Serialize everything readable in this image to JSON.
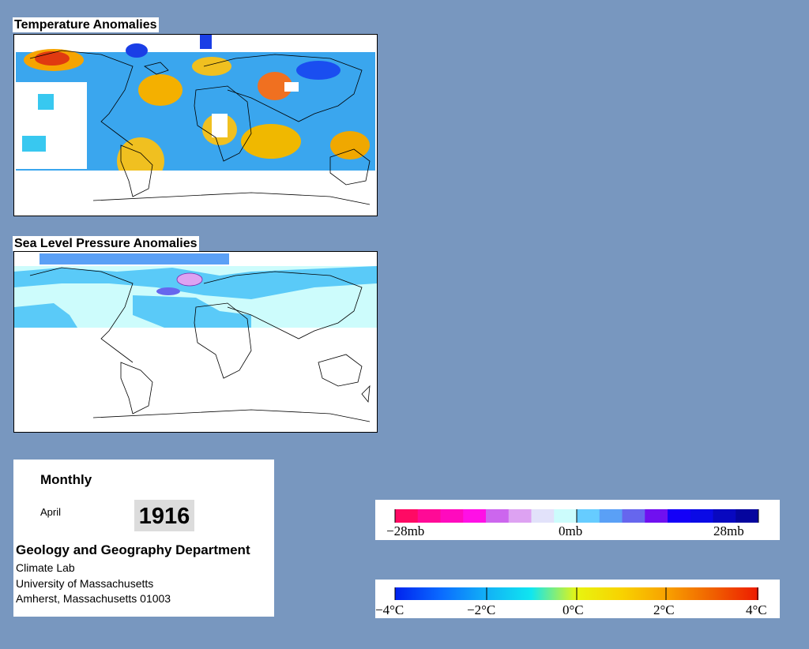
{
  "temperature_panel": {
    "title": "Temperature Anomalies"
  },
  "pressure_panel": {
    "title": "Sea Level Pressure Anomalies"
  },
  "info": {
    "period": "Monthly",
    "month": "April",
    "year": "1916",
    "department": "Geology and Geography Department",
    "lab": "Climate Lab",
    "university": "University of Massachusetts",
    "address": "Amherst, Massachusetts 01003"
  },
  "pressure_legend": {
    "labels": [
      "−28mb",
      "0mb",
      "28mb"
    ],
    "colors": [
      "#ff0a64",
      "#ff0a96",
      "#ff0abe",
      "#ff10e6",
      "#cc66ee",
      "#dda2f2",
      "#e2e2fa",
      "#ccfcfc",
      "#66ccff",
      "#5aa0f6",
      "#6666ee",
      "#7010f0",
      "#1400f8",
      "#0a0ae6",
      "#0808c0",
      "#05059e"
    ]
  },
  "temperature_legend": {
    "labels": [
      "−4°C",
      "−2°C",
      "0°C",
      "2°C",
      "4°C"
    ],
    "gradient": [
      "#0022ee",
      "#0a6aff",
      "#12b0f6",
      "#10e6f0",
      "#e8f410",
      "#f8d200",
      "#f8a000",
      "#f06000",
      "#ee1a00"
    ]
  }
}
